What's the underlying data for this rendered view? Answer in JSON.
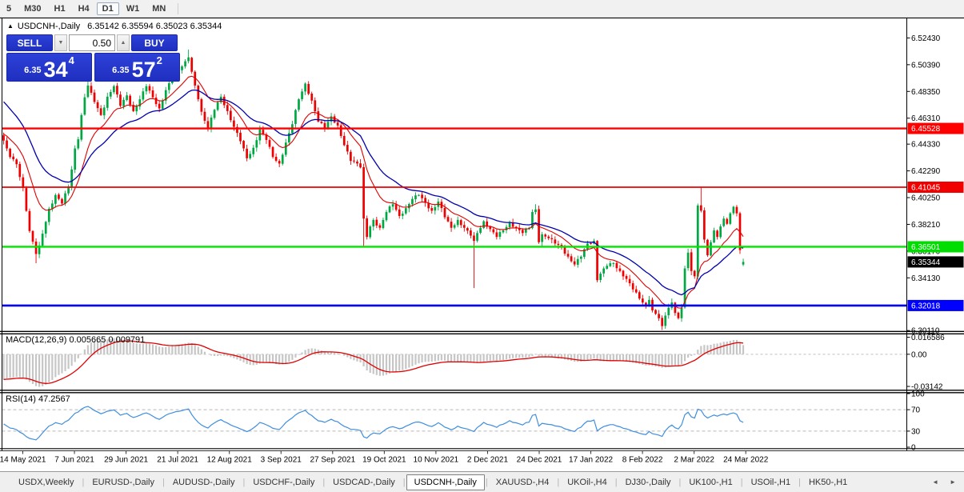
{
  "toolbar": {
    "timeframes": [
      "5",
      "M30",
      "H1",
      "H4",
      "D1",
      "W1",
      "MN"
    ],
    "active": "D1"
  },
  "header": {
    "collapse_icon": "▲",
    "symbol": "USDCNH-,Daily",
    "ohlc": "6.35142 6.35594 6.35023 6.35344"
  },
  "trade_panel": {
    "sell_label": "SELL",
    "buy_label": "BUY",
    "volume": "0.50",
    "down_icon": "▼",
    "up_icon": "▲",
    "sell": {
      "small": "6.35",
      "big": "34",
      "sup": "4"
    },
    "buy": {
      "small": "6.35",
      "big": "57",
      "sup": "2"
    }
  },
  "indicators": {
    "macd_label": "MACD(12,26,9) 0.005665 0.009791",
    "rsi_label": "RSI(14) 47.2567"
  },
  "tabs": {
    "items": [
      "USDX,Weekly",
      "EURUSD-,Daily",
      "AUDUSD-,Daily",
      "USDCHF-,Daily",
      "USDCAD-,Daily",
      "USDCNH-,Daily",
      "XAUUSD-,H4",
      "UKOil-,H4",
      "DJ30-,Daily",
      "UK100-,H1",
      "USOil-,H1",
      "HK50-,H1"
    ],
    "active_index": 5,
    "scroll_left_icon": "◄",
    "scroll_right_icon": "►"
  },
  "chart_data": {
    "type": "candlestick",
    "symbol": "USDCNH",
    "timeframe": "Daily",
    "candle_up_color": "#00a843",
    "candle_down_color": "#ee0000",
    "x_axis": {
      "labels": [
        "14 May 2021",
        "7 Jun 2021",
        "29 Jun 2021",
        "21 Jul 2021",
        "12 Aug 2021",
        "3 Sep 2021",
        "27 Sep 2021",
        "19 Oct 2021",
        "10 Nov 2021",
        "2 Dec 2021",
        "24 Dec 2021",
        "17 Jan 2022",
        "8 Feb 2022",
        "2 Mar 2022",
        "24 Mar 2022"
      ]
    },
    "y_axis": {
      "price_labels": [
        "6.52430",
        "6.50390",
        "6.48350",
        "6.46310",
        "6.44330",
        "6.42290",
        "6.40250",
        "6.38210",
        "6.36170",
        "6.34130",
        "6.30110"
      ],
      "range_top": 6.5386,
      "range_bottom": 6.3006
    },
    "hlines": [
      {
        "label": "6.45528",
        "value": 6.45528,
        "color": "#ff0000",
        "width": 2.4
      },
      {
        "label": "6.41045",
        "value": 6.41045,
        "color": "#f00000",
        "width": 1.8
      },
      {
        "label": "6.36501",
        "value": 6.36501,
        "color": "#00e400",
        "width": 2.4
      },
      {
        "label": "6.32018",
        "value": 6.32018,
        "color": "#0000ff",
        "width": 2.6
      }
    ],
    "current_price": {
      "label": "6.35344",
      "value": 6.35344,
      "badge_color": "#000000"
    },
    "last_bar": {
      "open": 6.35142,
      "high": 6.35594,
      "low": 6.35023,
      "close": 6.35344
    },
    "bars": 229,
    "close_anchors": [
      [
        0,
        6.446
      ],
      [
        1,
        6.44
      ],
      [
        2,
        6.4335
      ],
      [
        4,
        6.428
      ],
      [
        6,
        6.41
      ],
      [
        8,
        6.377
      ],
      [
        10,
        6.3595
      ],
      [
        11,
        6.366
      ],
      [
        12,
        6.375
      ],
      [
        14,
        6.394
      ],
      [
        16,
        6.4045
      ],
      [
        18,
        6.398
      ],
      [
        20,
        6.411
      ],
      [
        21,
        6.424
      ],
      [
        22,
        6.44
      ],
      [
        23,
        6.447
      ],
      [
        24,
        6.4655
      ],
      [
        25,
        6.479
      ],
      [
        26,
        6.488
      ],
      [
        27,
        6.4825
      ],
      [
        28,
        6.4755
      ],
      [
        30,
        6.4655
      ],
      [
        32,
        6.4795
      ],
      [
        34,
        6.4875
      ],
      [
        36,
        6.4725
      ],
      [
        38,
        6.4805
      ],
      [
        40,
        6.4685
      ],
      [
        42,
        6.4775
      ],
      [
        44,
        6.4875
      ],
      [
        46,
        6.479
      ],
      [
        48,
        6.4705
      ],
      [
        50,
        6.4845
      ],
      [
        52,
        6.4935
      ],
      [
        54,
        6.5
      ],
      [
        56,
        6.5065
      ],
      [
        57,
        6.5095
      ],
      [
        58,
        6.4985
      ],
      [
        59,
        6.488
      ],
      [
        60,
        6.4775
      ],
      [
        61,
        6.468
      ],
      [
        63,
        6.4555
      ],
      [
        65,
        6.4695
      ],
      [
        67,
        6.4795
      ],
      [
        69,
        6.4685
      ],
      [
        71,
        6.4565
      ],
      [
        73,
        6.4455
      ],
      [
        75,
        6.4325
      ],
      [
        77,
        6.4405
      ],
      [
        79,
        6.4545
      ],
      [
        81,
        6.4465
      ],
      [
        83,
        6.4335
      ],
      [
        85,
        6.4285
      ],
      [
        87,
        6.4445
      ],
      [
        89,
        6.4585
      ],
      [
        91,
        6.4775
      ],
      [
        93,
        6.4895
      ],
      [
        95,
        6.4765
      ],
      [
        97,
        6.4605
      ],
      [
        99,
        6.4555
      ],
      [
        101,
        6.4645
      ],
      [
        103,
        6.4575
      ],
      [
        105,
        6.4425
      ],
      [
        107,
        6.4305
      ],
      [
        109,
        6.4285
      ],
      [
        110,
        6.4255
      ],
      [
        111,
        6.3865
      ],
      [
        112,
        6.3725
      ],
      [
        113,
        6.3805
      ],
      [
        114,
        6.3855
      ],
      [
        116,
        6.3795
      ],
      [
        118,
        6.3915
      ],
      [
        120,
        6.3975
      ],
      [
        122,
        6.3885
      ],
      [
        124,
        6.3945
      ],
      [
        126,
        6.4015
      ],
      [
        128,
        6.4045
      ],
      [
        130,
        6.3985
      ],
      [
        132,
        6.3925
      ],
      [
        134,
        6.3995
      ],
      [
        136,
        6.3875
      ],
      [
        138,
        6.3795
      ],
      [
        140,
        6.3855
      ],
      [
        142,
        6.3795
      ],
      [
        144,
        6.3735
      ],
      [
        145,
        6.3695
      ],
      [
        146,
        6.3755
      ],
      [
        148,
        6.3845
      ],
      [
        150,
        6.3785
      ],
      [
        152,
        6.3725
      ],
      [
        154,
        6.3775
      ],
      [
        156,
        6.3835
      ],
      [
        158,
        6.3795
      ],
      [
        160,
        6.3755
      ],
      [
        162,
        6.3795
      ],
      [
        163,
        6.3915
      ],
      [
        164,
        6.3935
      ],
      [
        165,
        6.3685
      ],
      [
        166,
        6.3745
      ],
      [
        168,
        6.3715
      ],
      [
        170,
        6.3675
      ],
      [
        172,
        6.3645
      ],
      [
        174,
        6.3575
      ],
      [
        176,
        6.3515
      ],
      [
        178,
        6.3575
      ],
      [
        180,
        6.3675
      ],
      [
        182,
        6.3695
      ],
      [
        183,
        6.3395
      ],
      [
        184,
        6.3445
      ],
      [
        186,
        6.3505
      ],
      [
        188,
        6.3525
      ],
      [
        190,
        6.3465
      ],
      [
        192,
        6.3405
      ],
      [
        194,
        6.3325
      ],
      [
        196,
        6.3255
      ],
      [
        198,
        6.3205
      ],
      [
        199,
        6.3245
      ],
      [
        200,
        6.3165
      ],
      [
        202,
        6.3105
      ],
      [
        203,
        6.3045
      ],
      [
        204,
        6.3125
      ],
      [
        205,
        6.3185
      ],
      [
        206,
        6.3225
      ],
      [
        207,
        6.3145
      ],
      [
        208,
        6.3105
      ],
      [
        209,
        6.3185
      ],
      [
        210,
        6.3485
      ],
      [
        211,
        6.3605
      ],
      [
        212,
        6.3465
      ],
      [
        213,
        6.3425
      ],
      [
        214,
        6.3965
      ],
      [
        215,
        6.3925
      ],
      [
        216,
        6.3705
      ],
      [
        217,
        6.3585
      ],
      [
        218,
        6.3685
      ],
      [
        219,
        6.3775
      ],
      [
        220,
        6.3725
      ],
      [
        221,
        6.3805
      ],
      [
        222,
        6.3865
      ],
      [
        223,
        6.3825
      ],
      [
        224,
        6.3905
      ],
      [
        225,
        6.3955
      ],
      [
        226,
        6.3905
      ],
      [
        227,
        6.3625
      ],
      [
        228,
        6.35344
      ]
    ],
    "wick_overrides": {
      "10": {
        "low": 6.3525
      },
      "26": {
        "high": 6.4985
      },
      "57": {
        "high": 6.5155
      },
      "111": {
        "low": 6.3655
      },
      "145": {
        "low": 6.3335
      },
      "164": {
        "high": 6.3975
      },
      "203": {
        "low": 6.3015
      },
      "215": {
        "high": 6.41045
      }
    },
    "ma_fast": {
      "period": 12,
      "color": "#e00000",
      "seed": 6.452
    },
    "ma_slow": {
      "period": 26,
      "color": "#0000ae",
      "seed": 6.478
    },
    "macd": {
      "fast": 12,
      "slow": 26,
      "signal": 9,
      "axis_labels": [
        "0.016586",
        "0.00",
        "-0.03142"
      ],
      "hist_color": "#c6c6c6",
      "signal_color": "#e00000",
      "current_main": 0.005665,
      "current_signal": 0.009791
    },
    "rsi": {
      "period": 14,
      "axis_labels": [
        "100",
        "70",
        "30",
        "0"
      ],
      "dashed_levels": [
        70,
        30
      ],
      "color": "#3f8ede",
      "current": 47.2567
    }
  }
}
